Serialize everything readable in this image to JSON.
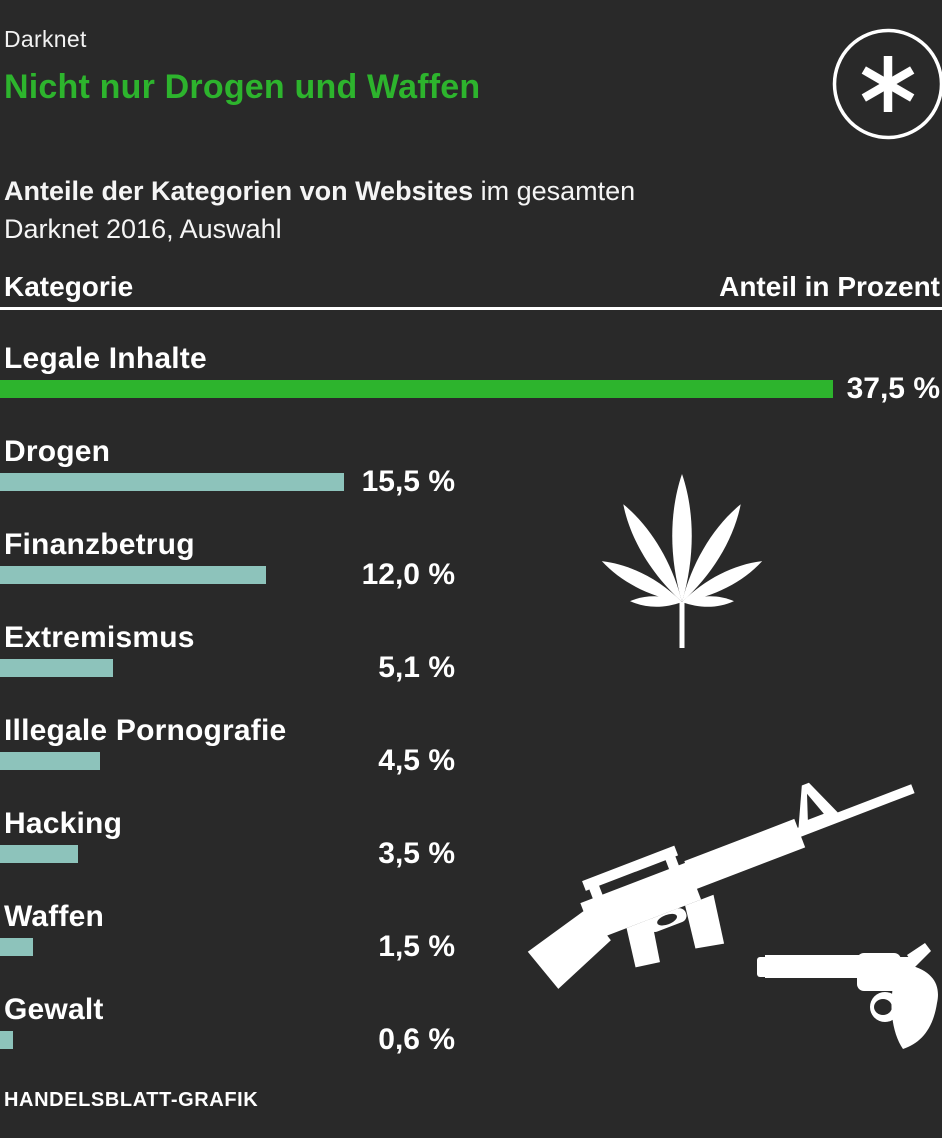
{
  "meta": {
    "eyebrow": "Darknet",
    "title": "Nicht nur Drogen und Waffen",
    "source": "HANDELSBLATT-GRAFIK"
  },
  "subtitle": {
    "bold": "Anteile der Kategorien von Websites",
    "rest": " im gesamten",
    "line2": "Darknet 2016, Auswahl"
  },
  "table": {
    "col_left": "Kategorie",
    "col_right": "Anteil in Prozent"
  },
  "colors": {
    "background": "#292929",
    "accent_green": "#2db42d",
    "bar_teal": "#8dc3bb",
    "text": "#ffffff"
  },
  "icons": {
    "logo": "asterisk-logo",
    "drugs": "cannabis-leaf-icon",
    "rifle": "assault-rifle-icon",
    "handgun": "revolver-icon"
  },
  "chart_data": {
    "type": "bar",
    "orientation": "horizontal",
    "title": "Nicht nur Drogen und Waffen",
    "subtitle": "Anteile der Kategorien von Websites im gesamten Darknet 2016, Auswahl",
    "xlabel": "Anteil in Prozent",
    "xlim": [
      0,
      37.5
    ],
    "grid": false,
    "legend": false,
    "highlight_index": 0,
    "categories": [
      "Legale Inhalte",
      "Drogen",
      "Finanzbetrug",
      "Extremismus",
      "Illegale Pornografie",
      "Hacking",
      "Waffen",
      "Gewalt"
    ],
    "values": [
      37.5,
      15.5,
      12.0,
      5.1,
      4.5,
      3.5,
      1.5,
      0.6
    ],
    "value_labels": [
      "37,5 %",
      "15,5 %",
      "12,0 %",
      "5,1 %",
      "4,5 %",
      "3,5 %",
      "1,5 %",
      "0,6 %"
    ]
  }
}
